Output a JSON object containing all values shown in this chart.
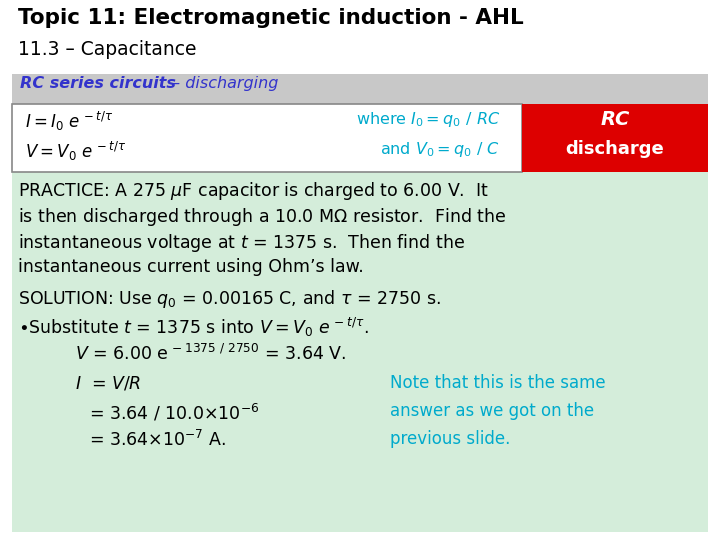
{
  "title_line1": "Topic 11: Electromagnetic induction - AHL",
  "title_line2": "11.3 – Capacitance",
  "bg_color": "#ffffff",
  "content_bg": "#d4edda",
  "header_bg": "#c8c8c8",
  "box_bg": "#ffffff",
  "red_box_bg": "#dd0000",
  "title1_color": "#000000",
  "title2_color": "#000000",
  "header_text_color": "#3333cc",
  "box_text_color": "#000000",
  "cyan_text_color": "#00aacc",
  "red_box_text_color": "#ffffff",
  "note_color": "#00aacc",
  "body_text_color": "#000000",
  "ohms_law": "instantaneous current using Ohm’s law."
}
